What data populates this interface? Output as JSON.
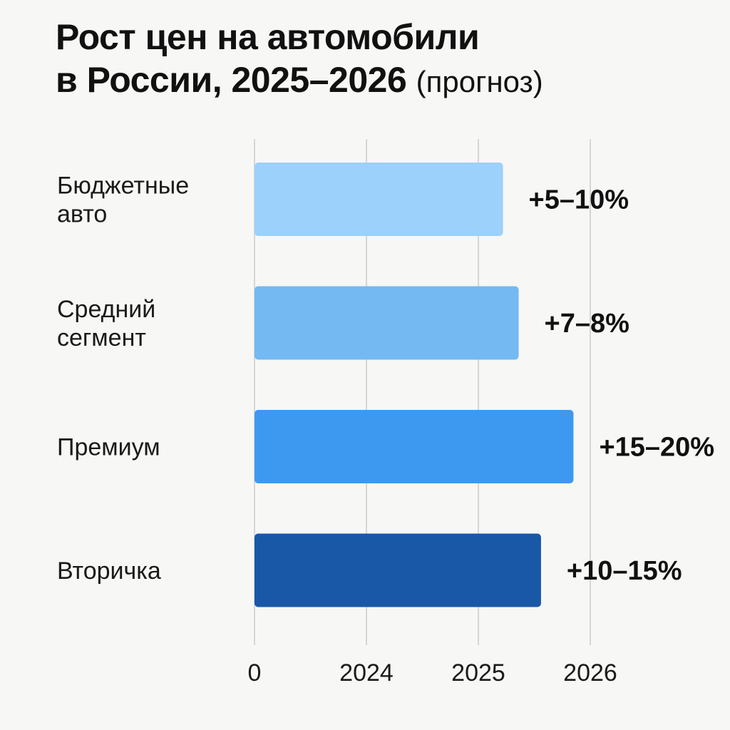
{
  "chart_data": {
    "type": "bar",
    "orientation": "horizontal",
    "title_main_line1": "Рост цен на автомобили",
    "title_main_line2": "в России, 2025–2026",
    "title_suffix": "(прогноз)",
    "categories": [
      [
        "Бюджетные",
        "авто"
      ],
      [
        "Средний",
        "сегмент"
      ],
      [
        "Премиум"
      ],
      [
        "Вторичка"
      ]
    ],
    "values": [
      2.22,
      2.36,
      2.85,
      2.56
    ],
    "value_labels": [
      "+5–10%",
      "+7–8%",
      "+15–20%",
      "+10–15%"
    ],
    "colors": [
      "#9bd1fb",
      "#74b9f2",
      "#3d99ef",
      "#1958a6"
    ],
    "x_ticks": [
      {
        "value": 0,
        "label": "0"
      },
      {
        "value": 1,
        "label": "2024"
      },
      {
        "value": 2,
        "label": "2025"
      },
      {
        "value": 3,
        "label": "2026"
      }
    ],
    "xlim": [
      0,
      3
    ],
    "grid": true
  }
}
